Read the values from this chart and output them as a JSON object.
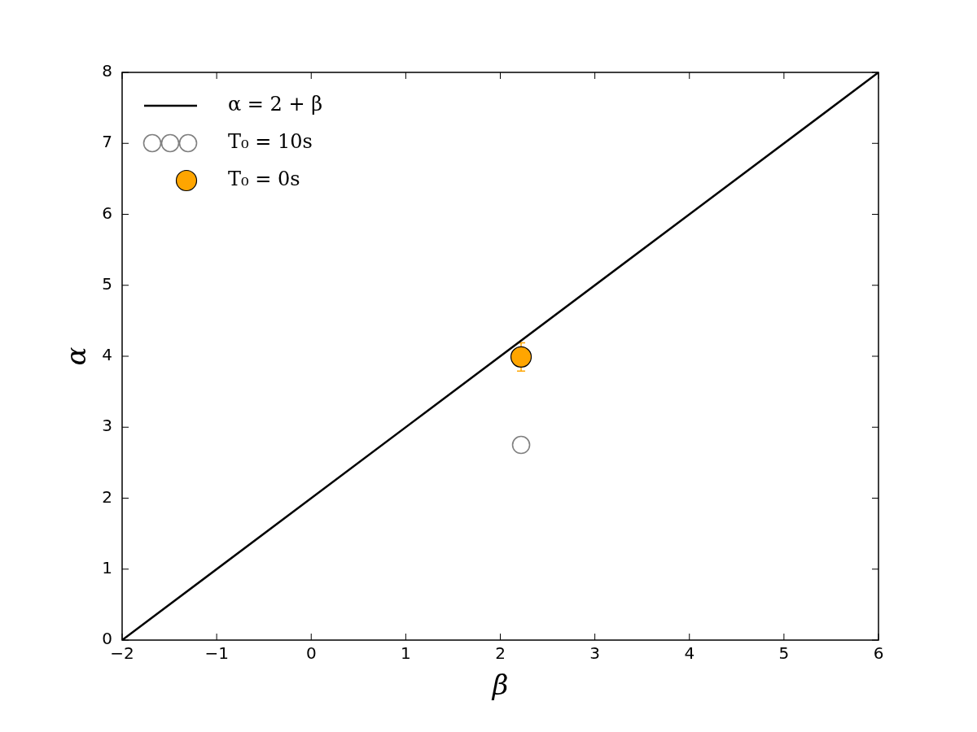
{
  "chart_data": {
    "type": "scatter",
    "xlabel": "β",
    "ylabel": "α",
    "xlim": [
      -2,
      6
    ],
    "ylim": [
      0,
      8
    ],
    "xticks": [
      {
        "value": -2,
        "label": "−2"
      },
      {
        "value": -1,
        "label": "−1"
      },
      0,
      1,
      2,
      3,
      4,
      5,
      6
    ],
    "yticks": [
      0,
      1,
      2,
      3,
      4,
      5,
      6,
      7,
      8
    ],
    "grid": false,
    "legend": "top left",
    "series": [
      {
        "name": "α = 2 + β",
        "type": "line",
        "color": "#000000",
        "x": [
          -2,
          6
        ],
        "values": [
          0,
          8
        ],
        "marker": "none"
      },
      {
        "name": "T₀ = 10s",
        "type": "scatter",
        "color": "#808080",
        "x": [
          2.22
        ],
        "values": [
          2.75
        ],
        "marker": "circle"
      },
      {
        "name": "T₀ = 0s",
        "type": "scatter",
        "color": "#ffa500",
        "x": [
          2.22
        ],
        "values": [
          3.99
        ],
        "errors": [
          0.2
        ],
        "marker": "circle"
      }
    ]
  }
}
